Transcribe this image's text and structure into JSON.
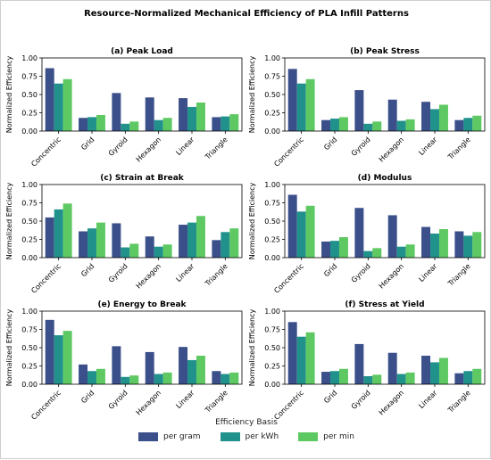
{
  "figure": {
    "title": "Resource-Normalized Mechanical Efficiency of PLA Infill Patterns"
  },
  "legend": {
    "title": "Efficiency Basis",
    "items": [
      {
        "label": "per gram",
        "color": "#3b4f8a"
      },
      {
        "label": "per kWh",
        "color": "#21918c"
      },
      {
        "label": "per min",
        "color": "#5ec962"
      }
    ]
  },
  "chart_data": [
    {
      "type": "bar",
      "title": "(a) Peak Load",
      "ylabel": "Normalized Efficiency",
      "ylim": [
        0,
        1.0
      ],
      "yticks": [
        "0.00",
        "0.25",
        "0.50",
        "0.75",
        "1.00"
      ],
      "categories": [
        "Concentric",
        "Grid",
        "Gyroid",
        "Hexagon",
        "Linear",
        "Triangle"
      ],
      "series": [
        {
          "name": "per gram",
          "values": [
            0.86,
            0.18,
            0.52,
            0.46,
            0.45,
            0.19
          ]
        },
        {
          "name": "per kWh",
          "values": [
            0.65,
            0.19,
            0.1,
            0.15,
            0.33,
            0.2
          ]
        },
        {
          "name": "per min",
          "values": [
            0.71,
            0.22,
            0.13,
            0.18,
            0.39,
            0.23
          ]
        }
      ]
    },
    {
      "type": "bar",
      "title": "(b) Peak Stress",
      "ylabel": "Normalized Efficiency",
      "ylim": [
        0,
        1.0
      ],
      "yticks": [
        "0.00",
        "0.25",
        "0.50",
        "0.75",
        "1.00"
      ],
      "categories": [
        "Concentric",
        "Grid",
        "Gyroid",
        "Hexagon",
        "Linear",
        "Triangle"
      ],
      "series": [
        {
          "name": "per gram",
          "values": [
            0.85,
            0.15,
            0.56,
            0.43,
            0.4,
            0.15
          ]
        },
        {
          "name": "per kWh",
          "values": [
            0.65,
            0.17,
            0.1,
            0.14,
            0.3,
            0.18
          ]
        },
        {
          "name": "per min",
          "values": [
            0.71,
            0.19,
            0.13,
            0.16,
            0.36,
            0.21
          ]
        }
      ]
    },
    {
      "type": "bar",
      "title": "(c) Strain at Break",
      "ylabel": "Normalized Efficiency",
      "ylim": [
        0,
        1.0
      ],
      "yticks": [
        "0.00",
        "0.25",
        "0.50",
        "0.75",
        "1.00"
      ],
      "categories": [
        "Concentric",
        "Grid",
        "Gyroid",
        "Hexagon",
        "Linear",
        "Triangle"
      ],
      "series": [
        {
          "name": "per gram",
          "values": [
            0.55,
            0.36,
            0.47,
            0.29,
            0.45,
            0.24
          ]
        },
        {
          "name": "per kWh",
          "values": [
            0.66,
            0.4,
            0.14,
            0.15,
            0.48,
            0.35
          ]
        },
        {
          "name": "per min",
          "values": [
            0.74,
            0.48,
            0.19,
            0.18,
            0.57,
            0.4
          ]
        }
      ]
    },
    {
      "type": "bar",
      "title": "(d) Modulus",
      "ylabel": "Normalized Efficiency",
      "ylim": [
        0,
        1.0
      ],
      "yticks": [
        "0.00",
        "0.25",
        "0.50",
        "0.75",
        "1.00"
      ],
      "categories": [
        "Concentric",
        "Grid",
        "Gyroid",
        "Hexagon",
        "Linear",
        "Triangle"
      ],
      "series": [
        {
          "name": "per gram",
          "values": [
            0.86,
            0.22,
            0.68,
            0.58,
            0.42,
            0.36
          ]
        },
        {
          "name": "per kWh",
          "values": [
            0.63,
            0.23,
            0.09,
            0.15,
            0.33,
            0.3
          ]
        },
        {
          "name": "per min",
          "values": [
            0.71,
            0.28,
            0.13,
            0.18,
            0.39,
            0.35
          ]
        }
      ]
    },
    {
      "type": "bar",
      "title": "(e) Energy to Break",
      "ylabel": "Normalized Efficiency",
      "ylim": [
        0,
        1.0
      ],
      "yticks": [
        "0.00",
        "0.25",
        "0.50",
        "0.75",
        "1.00"
      ],
      "categories": [
        "Concentric",
        "Grid",
        "Gyroid",
        "Hexagon",
        "Linear",
        "Triangle"
      ],
      "series": [
        {
          "name": "per gram",
          "values": [
            0.88,
            0.27,
            0.52,
            0.44,
            0.51,
            0.18
          ]
        },
        {
          "name": "per kWh",
          "values": [
            0.67,
            0.18,
            0.1,
            0.14,
            0.33,
            0.14
          ]
        },
        {
          "name": "per min",
          "values": [
            0.73,
            0.21,
            0.12,
            0.16,
            0.39,
            0.16
          ]
        }
      ]
    },
    {
      "type": "bar",
      "title": "(f) Stress at Yield",
      "ylabel": "Normalized Efficiency",
      "ylim": [
        0,
        1.0
      ],
      "yticks": [
        "0.00",
        "0.25",
        "0.50",
        "0.75",
        "1.00"
      ],
      "categories": [
        "Concentric",
        "Grid",
        "Gyroid",
        "Hexagon",
        "Linear",
        "Triangle"
      ],
      "series": [
        {
          "name": "per gram",
          "values": [
            0.85,
            0.17,
            0.55,
            0.43,
            0.39,
            0.15
          ]
        },
        {
          "name": "per kWh",
          "values": [
            0.65,
            0.18,
            0.11,
            0.14,
            0.3,
            0.18
          ]
        },
        {
          "name": "per min",
          "values": [
            0.71,
            0.21,
            0.13,
            0.16,
            0.36,
            0.21
          ]
        }
      ]
    }
  ]
}
